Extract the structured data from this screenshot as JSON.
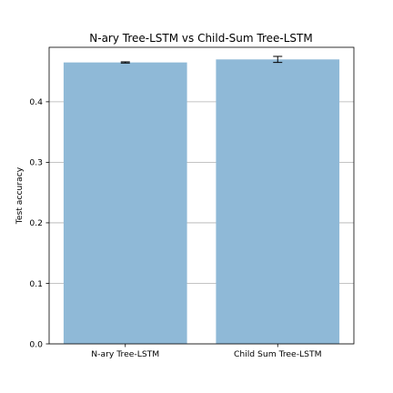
{
  "chart_data": {
    "type": "bar",
    "title": "N-ary Tree-LSTM vs Child-Sum Tree-LSTM",
    "xlabel": "",
    "ylabel": "Test accuracy",
    "categories": [
      "N-ary Tree-LSTM",
      "Child Sum Tree-LSTM"
    ],
    "values": [
      0.465,
      0.47
    ],
    "errors": [
      0.001,
      0.005
    ],
    "ylim": [
      0,
      0.49
    ],
    "yticks": [
      0.0,
      0.1,
      0.2,
      0.3,
      0.4
    ],
    "ytick_labels": [
      "0.0",
      "0.1",
      "0.2",
      "0.3",
      "0.4"
    ],
    "grid": "horizontal",
    "bar_color": "#8fb9d7",
    "grid_color": "#b0b0b0"
  }
}
